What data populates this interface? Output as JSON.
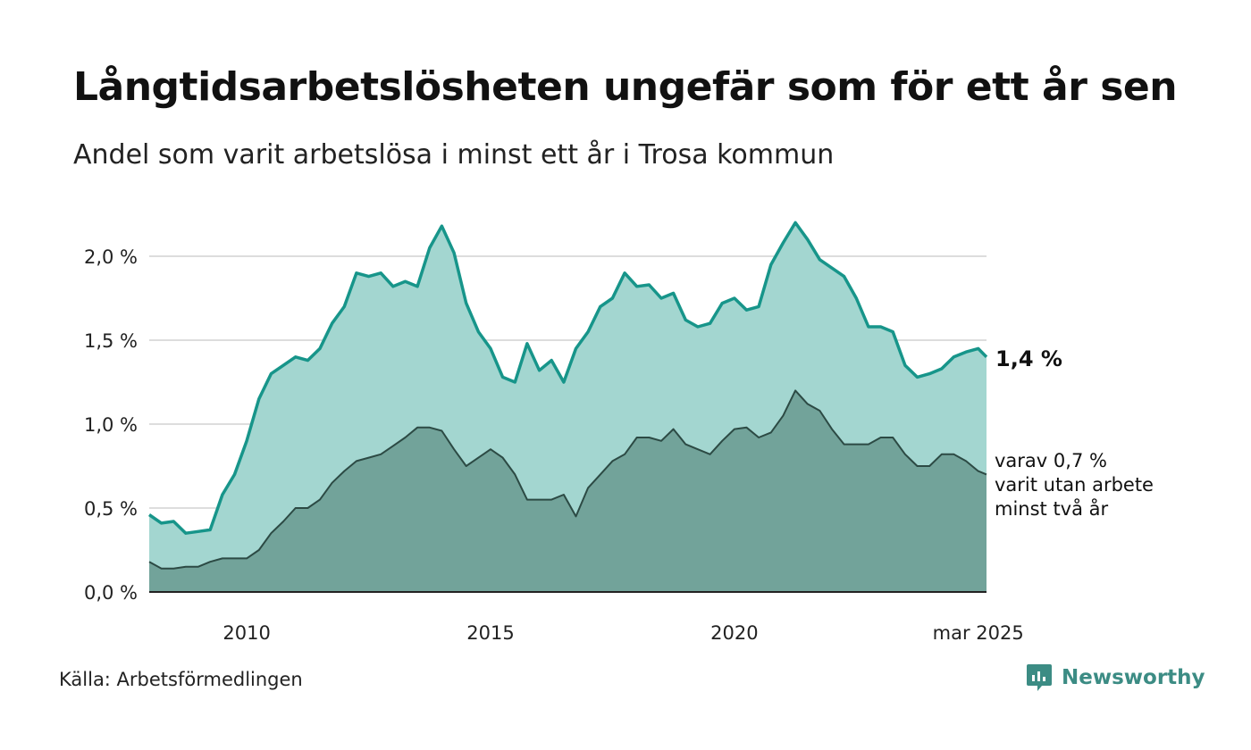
{
  "header": {
    "title": "Långtidsarbetslösheten ungefär som för ett år sen",
    "subtitle": "Andel som varit arbetslösa i minst ett år i Trosa kommun"
  },
  "footer": {
    "source": "Källa: Arbetsförmedlingen",
    "brand": "Newsworthy"
  },
  "colors": {
    "total_fill": "#a3d6d0",
    "total_line": "#17958a",
    "long_fill": "#72a39a",
    "long_line": "#2c4a44",
    "grid": "#dddddd",
    "brand": "#3c8c84"
  },
  "icons": {
    "brand_logo": "newsworthy-logo-icon"
  },
  "chart_data": {
    "type": "area",
    "xlim": [
      2008.0,
      2025.17
    ],
    "ylim": [
      0,
      2.0
    ],
    "yticks": [
      0.0,
      0.5,
      1.0,
      1.5,
      2.0
    ],
    "ytick_labels": [
      "0,0 %",
      "0,5 %",
      "1,0 %",
      "1,5 %",
      "2,0 %"
    ],
    "xticks": [
      2010,
      2015,
      2020,
      2025
    ],
    "xtick_labels": [
      "2010",
      "2015",
      "2020",
      "mar 2025"
    ],
    "grid": true,
    "end_labels": {
      "total": "1,4 %",
      "long": [
        "varav 0,7 %",
        "varit utan arbete",
        "minst två år"
      ]
    },
    "series": [
      {
        "key": "total",
        "points": [
          [
            2008.0,
            0.46
          ],
          [
            2008.25,
            0.41
          ],
          [
            2008.5,
            0.42
          ],
          [
            2008.75,
            0.35
          ],
          [
            2009.0,
            0.36
          ],
          [
            2009.25,
            0.37
          ],
          [
            2009.5,
            0.58
          ],
          [
            2009.75,
            0.7
          ],
          [
            2010.0,
            0.9
          ],
          [
            2010.25,
            1.15
          ],
          [
            2010.5,
            1.3
          ],
          [
            2010.75,
            1.35
          ],
          [
            2011.0,
            1.4
          ],
          [
            2011.25,
            1.38
          ],
          [
            2011.5,
            1.45
          ],
          [
            2011.75,
            1.6
          ],
          [
            2012.0,
            1.7
          ],
          [
            2012.25,
            1.9
          ],
          [
            2012.5,
            1.88
          ],
          [
            2012.75,
            1.9
          ],
          [
            2013.0,
            1.82
          ],
          [
            2013.25,
            1.85
          ],
          [
            2013.5,
            1.82
          ],
          [
            2013.75,
            2.05
          ],
          [
            2014.0,
            2.18
          ],
          [
            2014.25,
            2.02
          ],
          [
            2014.5,
            1.72
          ],
          [
            2014.75,
            1.55
          ],
          [
            2015.0,
            1.45
          ],
          [
            2015.25,
            1.28
          ],
          [
            2015.5,
            1.25
          ],
          [
            2015.75,
            1.48
          ],
          [
            2016.0,
            1.32
          ],
          [
            2016.25,
            1.38
          ],
          [
            2016.5,
            1.25
          ],
          [
            2016.75,
            1.45
          ],
          [
            2017.0,
            1.55
          ],
          [
            2017.25,
            1.7
          ],
          [
            2017.5,
            1.75
          ],
          [
            2017.75,
            1.9
          ],
          [
            2018.0,
            1.82
          ],
          [
            2018.25,
            1.83
          ],
          [
            2018.5,
            1.75
          ],
          [
            2018.75,
            1.78
          ],
          [
            2019.0,
            1.62
          ],
          [
            2019.25,
            1.58
          ],
          [
            2019.5,
            1.6
          ],
          [
            2019.75,
            1.72
          ],
          [
            2020.0,
            1.75
          ],
          [
            2020.25,
            1.68
          ],
          [
            2020.5,
            1.7
          ],
          [
            2020.75,
            1.95
          ],
          [
            2021.0,
            2.08
          ],
          [
            2021.25,
            2.2
          ],
          [
            2021.5,
            2.1
          ],
          [
            2021.75,
            1.98
          ],
          [
            2022.0,
            1.93
          ],
          [
            2022.25,
            1.88
          ],
          [
            2022.5,
            1.75
          ],
          [
            2022.75,
            1.58
          ],
          [
            2023.0,
            1.58
          ],
          [
            2023.25,
            1.55
          ],
          [
            2023.5,
            1.35
          ],
          [
            2023.75,
            1.28
          ],
          [
            2024.0,
            1.3
          ],
          [
            2024.25,
            1.33
          ],
          [
            2024.5,
            1.4
          ],
          [
            2024.75,
            1.43
          ],
          [
            2025.0,
            1.45
          ],
          [
            2025.17,
            1.4
          ]
        ]
      },
      {
        "key": "long",
        "points": [
          [
            2008.0,
            0.18
          ],
          [
            2008.25,
            0.14
          ],
          [
            2008.5,
            0.14
          ],
          [
            2008.75,
            0.15
          ],
          [
            2009.0,
            0.15
          ],
          [
            2009.25,
            0.18
          ],
          [
            2009.5,
            0.2
          ],
          [
            2009.75,
            0.2
          ],
          [
            2010.0,
            0.2
          ],
          [
            2010.25,
            0.25
          ],
          [
            2010.5,
            0.35
          ],
          [
            2010.75,
            0.42
          ],
          [
            2011.0,
            0.5
          ],
          [
            2011.25,
            0.5
          ],
          [
            2011.5,
            0.55
          ],
          [
            2011.75,
            0.65
          ],
          [
            2012.0,
            0.72
          ],
          [
            2012.25,
            0.78
          ],
          [
            2012.5,
            0.8
          ],
          [
            2012.75,
            0.82
          ],
          [
            2013.0,
            0.87
          ],
          [
            2013.25,
            0.92
          ],
          [
            2013.5,
            0.98
          ],
          [
            2013.75,
            0.98
          ],
          [
            2014.0,
            0.96
          ],
          [
            2014.25,
            0.85
          ],
          [
            2014.5,
            0.75
          ],
          [
            2014.75,
            0.8
          ],
          [
            2015.0,
            0.85
          ],
          [
            2015.25,
            0.8
          ],
          [
            2015.5,
            0.7
          ],
          [
            2015.75,
            0.55
          ],
          [
            2016.0,
            0.55
          ],
          [
            2016.25,
            0.55
          ],
          [
            2016.5,
            0.58
          ],
          [
            2016.75,
            0.45
          ],
          [
            2017.0,
            0.62
          ],
          [
            2017.25,
            0.7
          ],
          [
            2017.5,
            0.78
          ],
          [
            2017.75,
            0.82
          ],
          [
            2018.0,
            0.92
          ],
          [
            2018.25,
            0.92
          ],
          [
            2018.5,
            0.9
          ],
          [
            2018.75,
            0.97
          ],
          [
            2019.0,
            0.88
          ],
          [
            2019.25,
            0.85
          ],
          [
            2019.5,
            0.82
          ],
          [
            2019.75,
            0.9
          ],
          [
            2020.0,
            0.97
          ],
          [
            2020.25,
            0.98
          ],
          [
            2020.5,
            0.92
          ],
          [
            2020.75,
            0.95
          ],
          [
            2021.0,
            1.05
          ],
          [
            2021.25,
            1.2
          ],
          [
            2021.5,
            1.12
          ],
          [
            2021.75,
            1.08
          ],
          [
            2022.0,
            0.97
          ],
          [
            2022.25,
            0.88
          ],
          [
            2022.5,
            0.88
          ],
          [
            2022.75,
            0.88
          ],
          [
            2023.0,
            0.92
          ],
          [
            2023.25,
            0.92
          ],
          [
            2023.5,
            0.82
          ],
          [
            2023.75,
            0.75
          ],
          [
            2024.0,
            0.75
          ],
          [
            2024.25,
            0.82
          ],
          [
            2024.5,
            0.82
          ],
          [
            2024.75,
            0.78
          ],
          [
            2025.0,
            0.72
          ],
          [
            2025.17,
            0.7
          ]
        ]
      }
    ]
  }
}
